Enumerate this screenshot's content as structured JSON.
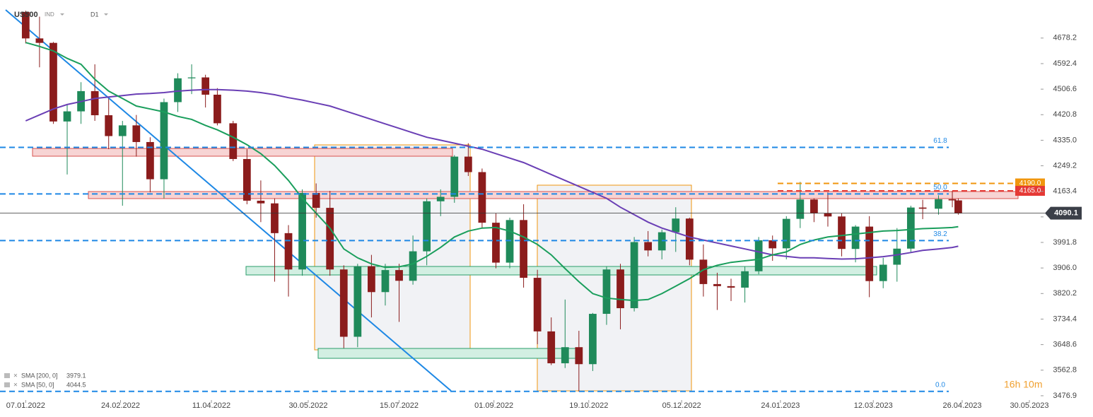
{
  "header": {
    "symbol": "US500",
    "market": "IND",
    "timeframe": "D1"
  },
  "timer": "16h 10m",
  "chart_data": {
    "type": "candlestick",
    "x": [
      "07.01.2022",
      "14.01.2022",
      "21.01.2022",
      "28.01.2022",
      "04.02.2022",
      "11.02.2022",
      "18.02.2022",
      "25.02.2022",
      "04.03.2022",
      "11.03.2022",
      "18.03.2022",
      "25.03.2022",
      "01.04.2022",
      "08.04.2022",
      "14.04.2022",
      "22.04.2022",
      "29.04.2022",
      "06.05.2022",
      "13.05.2022",
      "20.05.2022",
      "27.05.2022",
      "03.06.2022",
      "10.06.2022",
      "17.06.2022",
      "24.06.2022",
      "01.07.2022",
      "08.07.2022",
      "15.07.2022",
      "22.07.2022",
      "29.07.2022",
      "05.08.2022",
      "12.08.2022",
      "19.08.2022",
      "26.08.2022",
      "02.09.2022",
      "09.09.2022",
      "16.09.2022",
      "23.09.2022",
      "30.09.2022",
      "07.10.2022",
      "14.10.2022",
      "21.10.2022",
      "28.10.2022",
      "04.11.2022",
      "11.11.2022",
      "18.11.2022",
      "25.11.2022",
      "02.12.2022",
      "09.12.2022",
      "16.12.2022",
      "23.12.2022",
      "30.12.2022",
      "06.01.2023",
      "13.01.2023",
      "20.01.2023",
      "27.01.2023",
      "03.02.2023",
      "10.02.2023",
      "17.02.2023",
      "24.02.2023",
      "03.03.2023",
      "10.03.2023",
      "17.03.2023",
      "24.03.2023",
      "31.03.2023",
      "06.04.2023",
      "14.04.2023",
      "21.04.2023",
      "24.04.2023"
    ],
    "open": [
      4766,
      4677,
      4662,
      4398,
      4432,
      4500,
      4419,
      4349,
      4385,
      4329,
      4204,
      4463,
      4543,
      4546,
      4488,
      4392,
      4272,
      4132,
      4123,
      4023,
      3901,
      4158,
      4108,
      3901,
      3675,
      3912,
      3825,
      3899,
      3863,
      3962,
      4130,
      4145,
      4280,
      4228,
      4058,
      3924,
      4067,
      3873,
      3693,
      3586,
      3640,
      3583,
      3752,
      3901,
      3771,
      3993,
      3965,
      4026,
      4072,
      3934,
      3852,
      3845,
      3840,
      3895,
      3999,
      3972,
      4071,
      4136,
      4090,
      4079,
      3970,
      4045,
      3862,
      3917,
      3971,
      4109,
      4105,
      4137,
      4133
    ],
    "high": [
      4770,
      4750,
      4665,
      4455,
      4530,
      4590,
      4475,
      4400,
      4420,
      4345,
      4475,
      4560,
      4590,
      4555,
      4510,
      4400,
      4305,
      4200,
      4140,
      4050,
      4170,
      4190,
      4165,
      3915,
      3920,
      3950,
      3920,
      3920,
      4015,
      4140,
      4170,
      4285,
      4325,
      4240,
      4090,
      4075,
      4120,
      3900,
      3740,
      3800,
      3695,
      3755,
      3910,
      3920,
      4010,
      4030,
      4035,
      4110,
      4075,
      3985,
      3890,
      3870,
      3910,
      4010,
      4015,
      4080,
      4195,
      4140,
      4160,
      4090,
      4050,
      4080,
      3940,
      4040,
      4115,
      4135,
      4150,
      4165,
      4140
    ],
    "low": [
      4660,
      4580,
      4390,
      4220,
      4390,
      4400,
      4305,
      4115,
      4280,
      4160,
      4140,
      4430,
      4490,
      4445,
      4385,
      4265,
      4120,
      4060,
      3860,
      3810,
      3880,
      4075,
      3880,
      3637,
      3640,
      3740,
      3780,
      3725,
      3850,
      3915,
      4080,
      4125,
      4215,
      4040,
      3905,
      3905,
      3840,
      3650,
      3580,
      3570,
      3491,
      3560,
      3715,
      3700,
      3760,
      3945,
      3935,
      3960,
      3915,
      3810,
      3765,
      3795,
      3790,
      3885,
      3930,
      3935,
      4040,
      4060,
      4045,
      3945,
      3925,
      3808,
      3838,
      3860,
      3960,
      4070,
      4085,
      4110,
      4085
    ],
    "close": [
      4677,
      4662,
      4398,
      4432,
      4500,
      4419,
      4349,
      4385,
      4329,
      4204,
      4463,
      4543,
      4546,
      4488,
      4392,
      4272,
      4132,
      4123,
      4023,
      3901,
      4158,
      4108,
      3901,
      3675,
      3912,
      3825,
      3899,
      3863,
      3962,
      4130,
      4145,
      4280,
      4228,
      4058,
      3924,
      4067,
      3873,
      3693,
      3586,
      3640,
      3583,
      3752,
      3901,
      3771,
      3993,
      3965,
      4026,
      4072,
      3934,
      3852,
      3845,
      3840,
      3895,
      3999,
      3972,
      4071,
      4136,
      4090,
      4079,
      3970,
      4045,
      3862,
      3917,
      3971,
      4109,
      4105,
      4137,
      4133,
      4090.1
    ],
    "up_color": "#1f8a5a",
    "down_color": "#8b1c1c",
    "overlays": [
      {
        "name": "SMA [200, 0]",
        "last": 3979.1,
        "color": "#6a3fb5",
        "values": [
          4400,
          4420,
          4440,
          4455,
          4465,
          4475,
          4480,
          4485,
          4490,
          4492,
          4495,
          4500,
          4503,
          4505,
          4505,
          4503,
          4500,
          4495,
          4488,
          4478,
          4470,
          4460,
          4450,
          4435,
          4420,
          4405,
          4390,
          4375,
          4360,
          4345,
          4335,
          4325,
          4315,
          4305,
          4290,
          4275,
          4260,
          4240,
          4220,
          4200,
          4180,
          4160,
          4140,
          4110,
          4085,
          4060,
          4040,
          4025,
          4010,
          4000,
          3990,
          3980,
          3970,
          3960,
          3950,
          3945,
          3940,
          3940,
          3938,
          3936,
          3937,
          3940,
          3944,
          3950,
          3958,
          3965,
          3970,
          3975,
          3979.1
        ]
      },
      {
        "name": "SMA [50, 0]",
        "last": 4044.5,
        "color": "#1a9e5c",
        "values": [
          4663,
          4650,
          4635,
          4610,
          4590,
          4540,
          4500,
          4475,
          4450,
          4440,
          4430,
          4415,
          4405,
          4385,
          4370,
          4345,
          4320,
          4290,
          4250,
          4200,
          4140,
          4090,
          4040,
          3970,
          3940,
          3920,
          3908,
          3910,
          3920,
          3945,
          3975,
          4010,
          4030,
          4040,
          4042,
          4030,
          4010,
          3985,
          3950,
          3904,
          3860,
          3820,
          3805,
          3800,
          3797,
          3800,
          3820,
          3845,
          3870,
          3900,
          3915,
          3925,
          3930,
          3935,
          3950,
          3960,
          3985,
          4000,
          4010,
          4015,
          4020,
          4025,
          4030,
          4032,
          4035,
          4038,
          4040,
          4042,
          4044.5
        ]
      }
    ],
    "levels": [
      {
        "label": "61.8",
        "value": 4311
      },
      {
        "label": "50.0",
        "value": 4154.6
      },
      {
        "label": "38.2",
        "value": 3998
      },
      {
        "label": "0.0",
        "value": 3491.6
      }
    ],
    "level_color": "#1e88e5",
    "price_lines": [
      {
        "value": 4190,
        "label": "4190.0",
        "color": "#f0960e"
      },
      {
        "value": 4165,
        "label": "4165.0",
        "color": "#e53935"
      }
    ],
    "last_price": 4090.1,
    "ylim": [
      3453,
      4806
    ],
    "yticks": [
      4678.2,
      4592.4,
      4506.6,
      4420.8,
      {
        "value": 4335,
        "label": "4335.0"
      },
      4249.2,
      4163.4,
      4077.6,
      3991.8,
      {
        "value": 3906,
        "label": "3906.0"
      },
      3820.2,
      3734.4,
      3648.6,
      3562.8,
      3476.9
    ],
    "xlim": [
      "25.12.2021",
      "04.06.2023"
    ],
    "xticks": [
      "07.01.2022",
      "24.02.2022",
      "11.04.2022",
      "30.05.2022",
      "15.07.2022",
      "01.09.2022",
      "19.10.2022",
      "05.12.2022",
      "24.01.2023",
      "12.03.2023",
      "26.04.2023",
      "30.05.2023"
    ]
  }
}
